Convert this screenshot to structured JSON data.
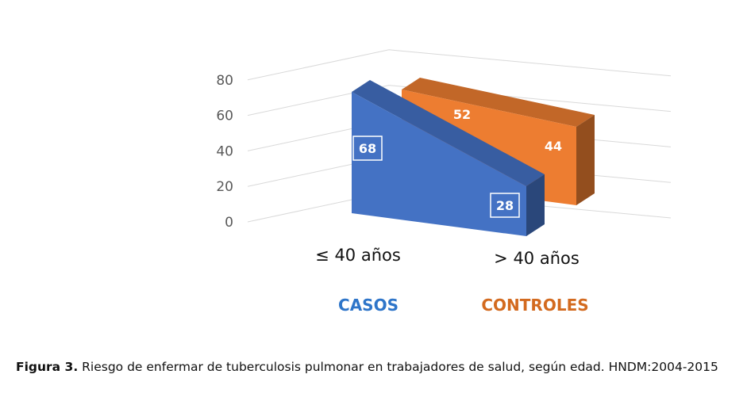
{
  "chart_data": {
    "type": "area",
    "view": "3d",
    "categories": [
      "≤ 40 años",
      "> 40 años"
    ],
    "series": [
      {
        "name": "CASOS",
        "values": [
          68,
          28
        ],
        "color": "#4472C4"
      },
      {
        "name": "CONTROLES",
        "values": [
          52,
          44
        ],
        "color": "#ED7D31"
      }
    ],
    "ylim": [
      0,
      80
    ],
    "yticks": [
      0,
      20,
      40,
      60,
      80
    ],
    "grid": true,
    "legend_placement": "bottom"
  },
  "caption": {
    "label": "Figura 3.",
    "text": "Riesgo de enfermar de tuberculosis pulmonar en trabajadores de salud, según edad. HNDM:2004-2015"
  }
}
